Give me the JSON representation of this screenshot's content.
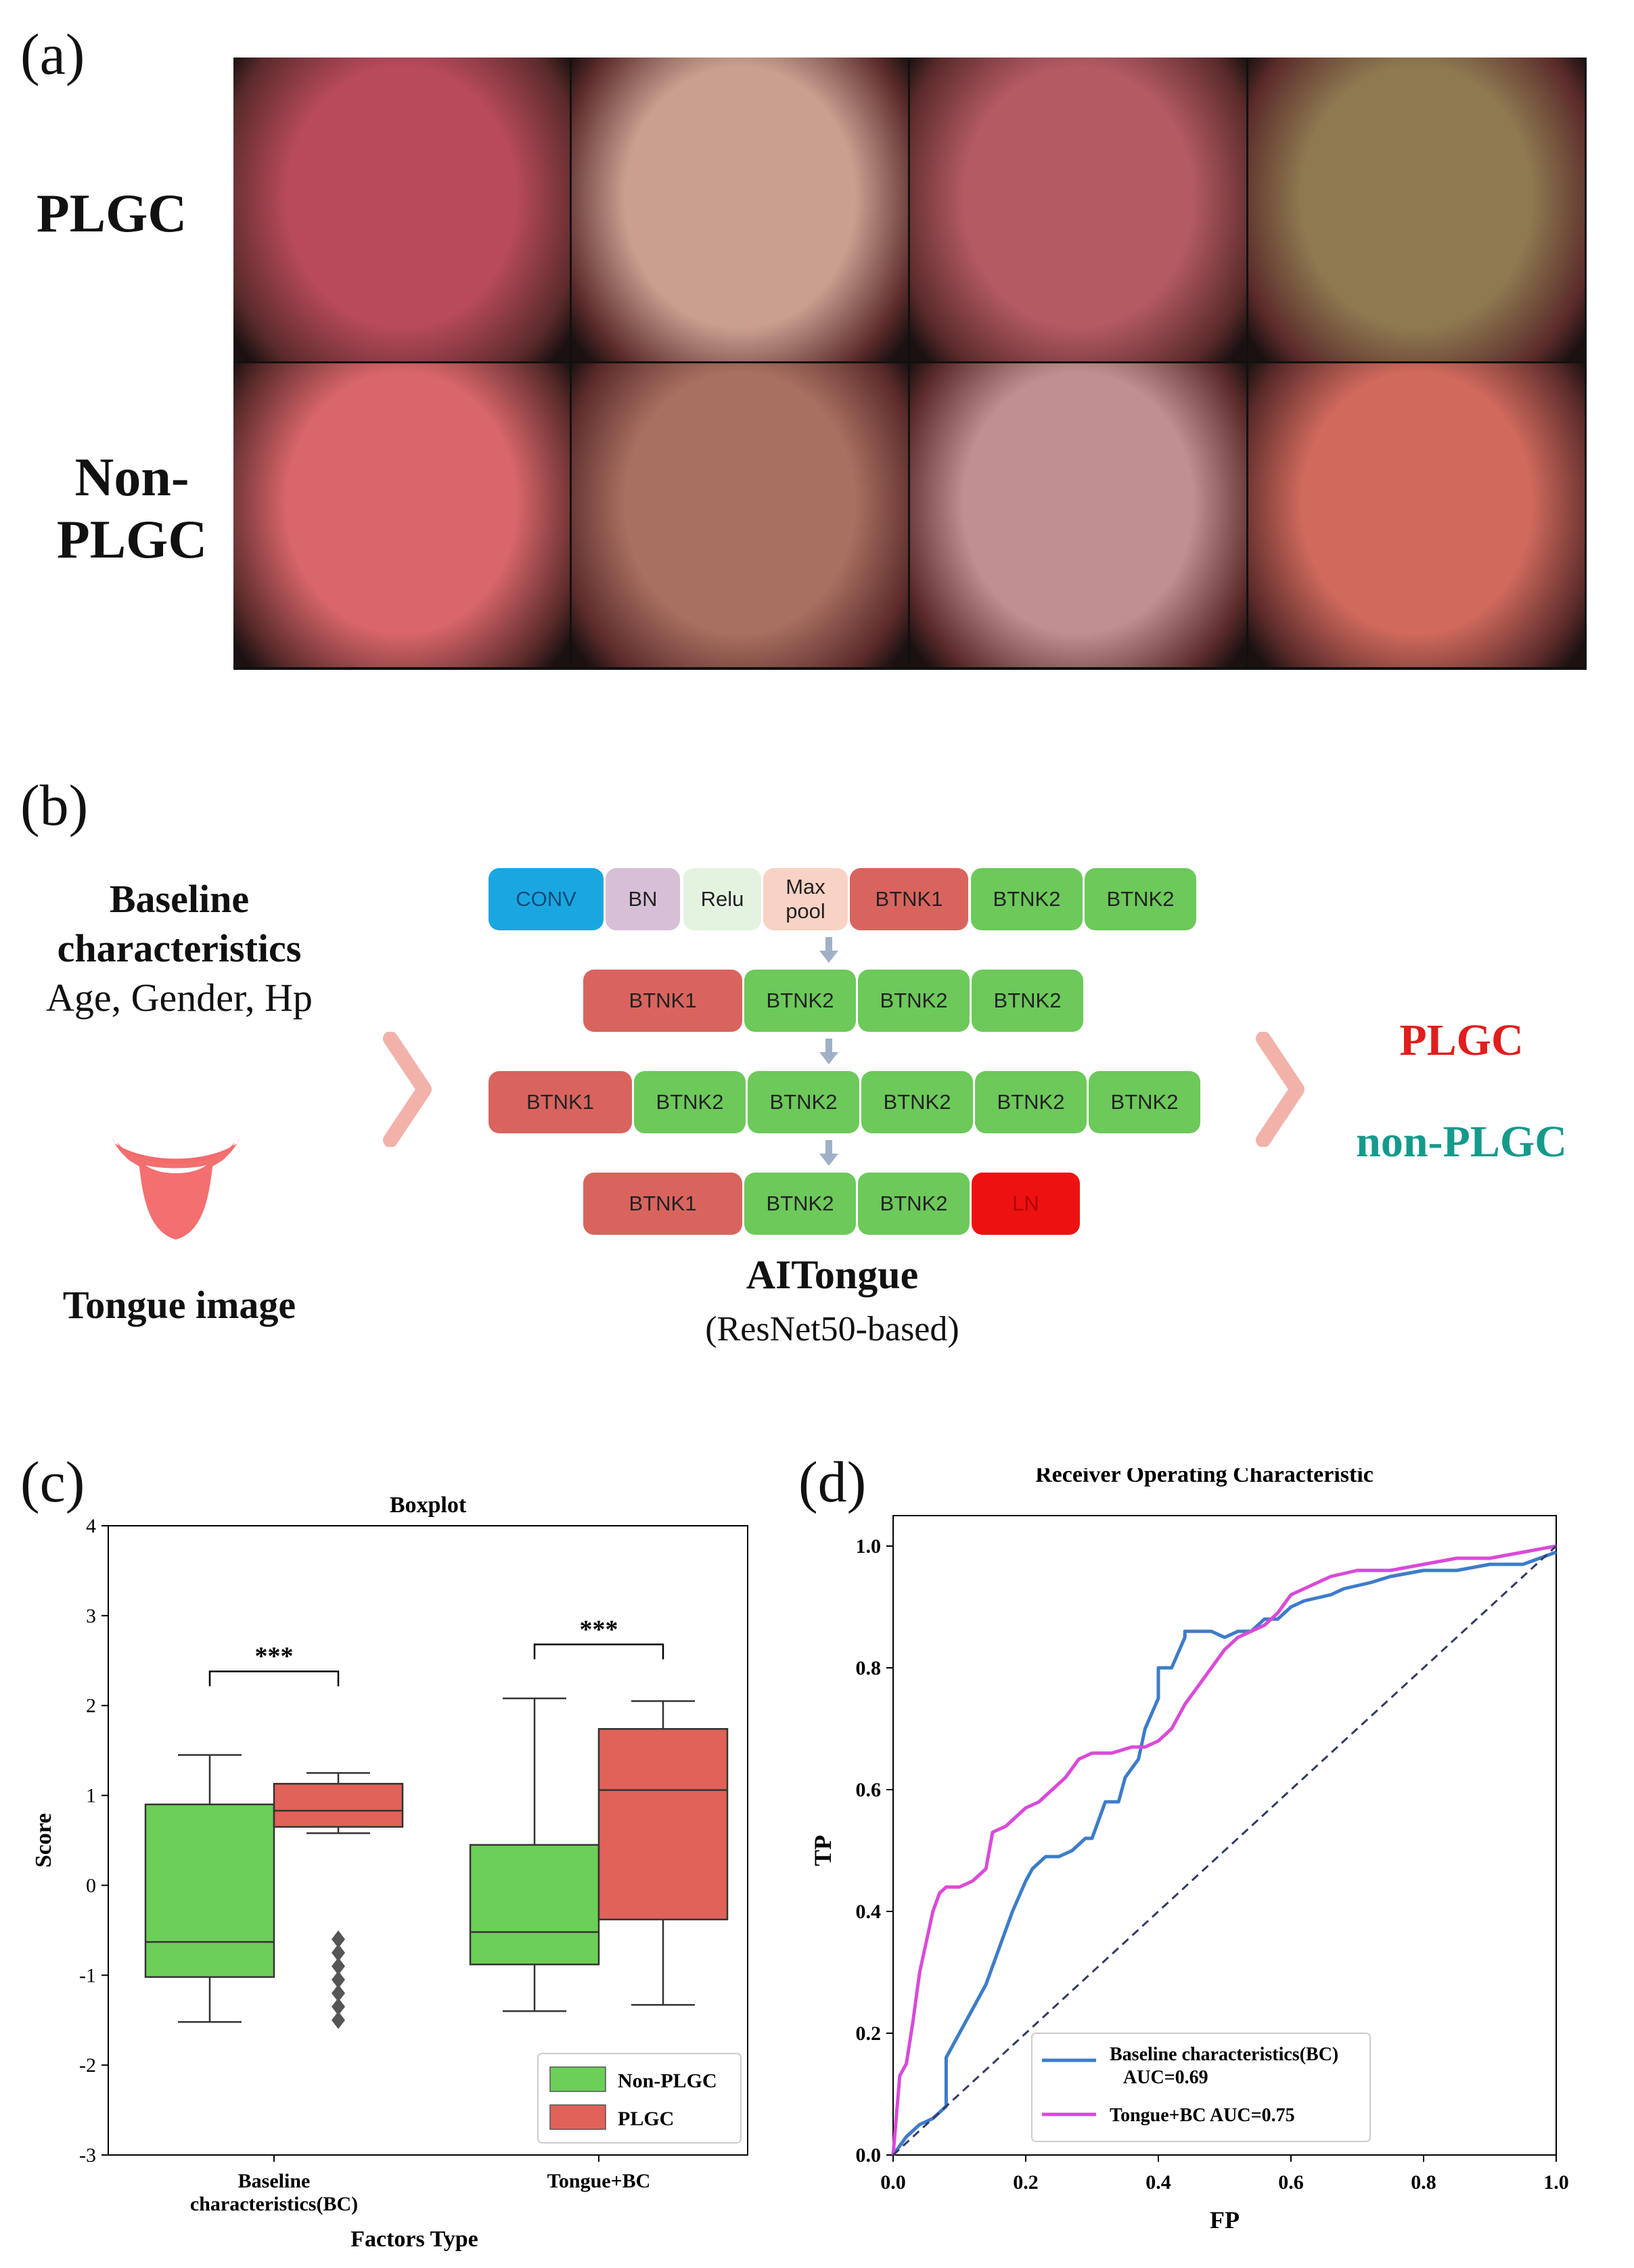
{
  "panels": {
    "a": {
      "label": "(a)",
      "row_labels": [
        "PLGC",
        "Non-",
        "PLGC"
      ],
      "images": [
        {
          "name": "plgc-tongue-1",
          "color": "#b84a5b"
        },
        {
          "name": "plgc-tongue-2",
          "color": "#c9a090"
        },
        {
          "name": "plgc-tongue-3",
          "color": "#b35a63"
        },
        {
          "name": "plgc-tongue-4",
          "color": "#8e7a50"
        },
        {
          "name": "nonplgc-tongue-1",
          "color": "#d9666a"
        },
        {
          "name": "nonplgc-tongue-2",
          "color": "#a87060"
        },
        {
          "name": "nonplgc-tongue-3",
          "color": "#c09090"
        },
        {
          "name": "nonplgc-tongue-4",
          "color": "#d06a5c"
        }
      ]
    },
    "b": {
      "label": "(b)",
      "inputs": {
        "title_line1": "Baseline",
        "title_line2": "characteristics",
        "subtitle": "Age, Gender, Hp",
        "tongue_label": "Tongue image"
      },
      "network": {
        "row1": [
          "CONV",
          "BN",
          "Relu",
          "Max",
          "pool",
          "BTNK1",
          "BTNK2",
          "BTNK2"
        ],
        "row2": [
          "BTNK1",
          "BTNK2",
          "BTNK2",
          "BTNK2"
        ],
        "row3": [
          "BTNK1",
          "BTNK2",
          "BTNK2",
          "BTNK2",
          "BTNK2",
          "BTNK2"
        ],
        "row4": [
          "BTNK1",
          "BTNK2",
          "BTNK2",
          "LN"
        ],
        "title": "AITongue",
        "subtitle": "(ResNet50-based)"
      },
      "outputs": {
        "positive": "PLGC",
        "negative": "non-PLGC"
      },
      "colors": {
        "conv": "#1aa7e0",
        "bn": "#d7bfd6",
        "relu": "#e3f3e0",
        "maxpool": "#f8d3c4",
        "btnk1": "#d9645e",
        "btnk2": "#6cc95a",
        "ln": "#ee1111",
        "arrow": "#f2b2aa",
        "plgc": "#e11d1d",
        "nonplgc": "#159a8c"
      }
    },
    "c": {
      "label": "(c)",
      "chart_data": {
        "type": "box",
        "title": "Boxplot",
        "xlabel": "Factors Type",
        "ylabel": "Score",
        "ylim": [
          -3,
          4
        ],
        "yticks": [
          -3,
          -2,
          -1,
          0,
          1,
          2,
          3,
          4
        ],
        "categories": [
          "Baseline characteristics(BC)",
          "Tongue+BC"
        ],
        "category_lines": [
          [
            "Baseline",
            "characteristics(BC)"
          ],
          [
            "Tongue+BC"
          ]
        ],
        "series": [
          {
            "name": "Non-PLGC",
            "color": "#6ccf57",
            "boxes": [
              {
                "whisker_low": -1.52,
                "q1": -1.02,
                "median": -0.63,
                "q3": 0.9,
                "whisker_high": 1.45,
                "outliers": []
              },
              {
                "whisker_low": -1.4,
                "q1": -0.88,
                "median": -0.52,
                "q3": 0.45,
                "whisker_high": 2.08,
                "outliers": []
              }
            ]
          },
          {
            "name": "PLGC",
            "color": "#e06258",
            "boxes": [
              {
                "whisker_low": 0.58,
                "q1": 0.65,
                "median": 0.83,
                "q3": 1.13,
                "whisker_high": 1.25,
                "outliers": [
                  -0.6,
                  -0.75,
                  -0.9,
                  -1.05,
                  -1.2,
                  -1.35,
                  -1.5
                ]
              },
              {
                "whisker_low": -1.33,
                "q1": -0.38,
                "median": 1.06,
                "q3": 1.74,
                "whisker_high": 2.05,
                "outliers": []
              }
            ]
          }
        ],
        "significance": [
          "***",
          "***"
        ],
        "significance_y": [
          2.38,
          2.68
        ]
      }
    },
    "d": {
      "label": "(d)",
      "chart_data": {
        "type": "line",
        "title": "Receiver Operating Characteristic",
        "xlabel": "FP",
        "ylabel": "TP",
        "xlim": [
          0,
          1
        ],
        "ylim": [
          0,
          1
        ],
        "xticks": [
          "0.0",
          "0.2",
          "0.4",
          "0.6",
          "0.8",
          "1.0"
        ],
        "yticks": [
          "0.0",
          "0.2",
          "0.4",
          "0.6",
          "0.8",
          "1.0"
        ],
        "series": [
          {
            "name": "Baseline characteristics(BC)",
            "legend_line1": "Baseline characteristics(BC)",
            "legend_line2": "AUC=0.69",
            "color": "#3d7cc9",
            "x": [
              0,
              0.02,
              0.04,
              0.06,
              0.08,
              0.08,
              0.1,
              0.12,
              0.14,
              0.16,
              0.18,
              0.2,
              0.21,
              0.23,
              0.25,
              0.27,
              0.29,
              0.3,
              0.32,
              0.34,
              0.35,
              0.37,
              0.38,
              0.4,
              0.4,
              0.42,
              0.44,
              0.44,
              0.48,
              0.5,
              0.52,
              0.54,
              0.56,
              0.58,
              0.6,
              0.62,
              0.66,
              0.68,
              0.72,
              0.75,
              0.8,
              0.85,
              0.9,
              0.95,
              1.0
            ],
            "y": [
              0,
              0.03,
              0.05,
              0.06,
              0.08,
              0.16,
              0.2,
              0.24,
              0.28,
              0.34,
              0.4,
              0.45,
              0.47,
              0.49,
              0.49,
              0.5,
              0.52,
              0.52,
              0.58,
              0.58,
              0.62,
              0.65,
              0.7,
              0.75,
              0.8,
              0.8,
              0.85,
              0.86,
              0.86,
              0.85,
              0.86,
              0.86,
              0.88,
              0.88,
              0.9,
              0.91,
              0.92,
              0.93,
              0.94,
              0.95,
              0.96,
              0.96,
              0.97,
              0.97,
              0.99
            ]
          },
          {
            "name": "Tongue+BC",
            "legend_line1": "Tongue+BC AUC=0.75",
            "legend_line2": "",
            "color": "#d94ad9",
            "x": [
              0,
              0.01,
              0.02,
              0.03,
              0.04,
              0.05,
              0.06,
              0.07,
              0.08,
              0.1,
              0.12,
              0.14,
              0.15,
              0.17,
              0.19,
              0.2,
              0.22,
              0.24,
              0.26,
              0.28,
              0.3,
              0.33,
              0.36,
              0.38,
              0.4,
              0.42,
              0.44,
              0.46,
              0.48,
              0.5,
              0.52,
              0.54,
              0.56,
              0.58,
              0.6,
              0.62,
              0.66,
              0.7,
              0.75,
              0.8,
              0.85,
              0.9,
              0.95,
              1.0
            ],
            "y": [
              0,
              0.13,
              0.15,
              0.22,
              0.3,
              0.35,
              0.4,
              0.43,
              0.44,
              0.44,
              0.45,
              0.47,
              0.53,
              0.54,
              0.56,
              0.57,
              0.58,
              0.6,
              0.62,
              0.65,
              0.66,
              0.66,
              0.67,
              0.67,
              0.68,
              0.7,
              0.74,
              0.77,
              0.8,
              0.83,
              0.85,
              0.86,
              0.87,
              0.89,
              0.92,
              0.93,
              0.95,
              0.96,
              0.96,
              0.97,
              0.98,
              0.98,
              0.99,
              1.0
            ]
          },
          {
            "name": "chance",
            "color": "#333a66",
            "dashed": true,
            "x": [
              0,
              1
            ],
            "y": [
              0,
              1
            ]
          }
        ]
      }
    }
  }
}
